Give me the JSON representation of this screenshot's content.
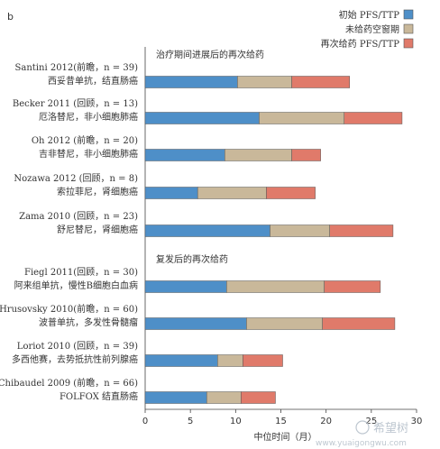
{
  "panel_label": "b",
  "chart_data": {
    "type": "bar",
    "stacked": true,
    "orientation": "horizontal",
    "xlabel": "中位时间（月）",
    "xlim": [
      0,
      30
    ],
    "xticks": [
      0,
      5,
      10,
      15,
      20,
      25,
      30
    ],
    "legend_position": "top-right",
    "series": [
      {
        "name": "初始 PFS/TTP",
        "color": "#4e8fc8"
      },
      {
        "name": "未给药空窗期",
        "color": "#c9b89a"
      },
      {
        "name": "再次给药 PFS/TTP",
        "color": "#e07a6a"
      }
    ],
    "sections": [
      {
        "title": "治疗期间进展后的再次给药",
        "studies": [
          {
            "study": "Santini 2012(前瞻，n = 39)",
            "therapy": "西妥昔单抗，结直肠癌",
            "values": [
              10.2,
              6.0,
              6.4
            ]
          },
          {
            "study": "Becker 2011 (回顾，n = 13)",
            "therapy": "厄洛替尼，非小细胞肺癌",
            "values": [
              12.6,
              9.4,
              6.4
            ]
          },
          {
            "study": "Oh 2012 (前瞻，n = 20)",
            "therapy": "吉非替尼，非小细胞肺癌",
            "values": [
              8.8,
              7.4,
              3.2
            ]
          },
          {
            "study": "Nozawa 2012 (回顾，n = 8)",
            "therapy": "索拉菲尼，肾细胞癌",
            "values": [
              5.8,
              7.6,
              5.4
            ]
          },
          {
            "study": "Zama 2010 (回顾，n = 23)",
            "therapy": "舒尼替尼，肾细胞癌",
            "values": [
              13.8,
              6.6,
              7.0
            ]
          }
        ]
      },
      {
        "title": "复发后的再次给药",
        "studies": [
          {
            "study": "Fiegl 2011(回顾，n = 30)",
            "therapy": "阿来组单抗，慢性B细胞白血病",
            "values": [
              9.0,
              10.8,
              6.2
            ]
          },
          {
            "study": "Hrusovsky 2010(前瞻，n = 60)",
            "therapy": "波普单抗，多发性骨髓瘤",
            "values": [
              11.2,
              8.4,
              8.0
            ]
          },
          {
            "study": "Loriot 2010 (回顾，n = 39)",
            "therapy": "多西他赛，去势抵抗性前列腺癌",
            "values": [
              8.0,
              2.8,
              4.4
            ]
          },
          {
            "study": "Chibaudel 2009 (前瞻，n = 66)",
            "therapy": "FOLFOX 结直肠癌",
            "values": [
              6.8,
              3.8,
              3.8
            ]
          }
        ]
      }
    ]
  },
  "watermark": {
    "brand": "希望树",
    "url": "www.yuaigongwu.com"
  }
}
